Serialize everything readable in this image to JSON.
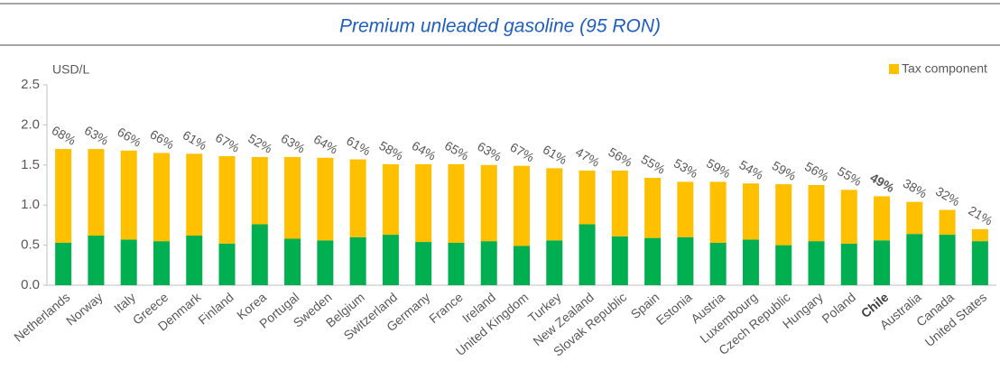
{
  "chart_data": {
    "type": "stacked_bar",
    "title": "Premium unleaded gasoline (95 RON)",
    "y_label": "USD/L",
    "categories": [
      "Netherlands",
      "Norway",
      "Italy",
      "Greece",
      "Denmark",
      "Finland",
      "Korea",
      "Portugal",
      "Sweden",
      "Belgium",
      "Switzerland",
      "Germany",
      "France",
      "Ireland",
      "United Kingdom",
      "Turkey",
      "New Zealand",
      "Slovak Republic",
      "Spain",
      "Estonia",
      "Austria",
      "Luxembourg",
      "Czech Republic",
      "Hungary",
      "Poland",
      "Chile",
      "Australia",
      "Canada",
      "United States"
    ],
    "series": [
      {
        "color": "#00b050",
        "values": [
          0.53,
          0.62,
          0.57,
          0.55,
          0.62,
          0.52,
          0.76,
          0.58,
          0.56,
          0.6,
          0.63,
          0.54,
          0.53,
          0.55,
          0.49,
          0.56,
          0.76,
          0.61,
          0.59,
          0.6,
          0.53,
          0.57,
          0.5,
          0.55,
          0.52,
          0.56,
          0.64,
          0.63,
          0.55
        ]
      },
      {
        "name": "Tax component",
        "color": "#ffc000",
        "values": [
          1.17,
          1.08,
          1.11,
          1.1,
          1.02,
          1.09,
          0.84,
          1.02,
          1.03,
          0.97,
          0.88,
          0.97,
          0.98,
          0.95,
          1.0,
          0.9,
          0.67,
          0.82,
          0.75,
          0.69,
          0.76,
          0.7,
          0.76,
          0.7,
          0.67,
          0.55,
          0.4,
          0.31,
          0.15
        ]
      }
    ],
    "share_labels": [
      "68%",
      "63%",
      "66%",
      "66%",
      "61%",
      "67%",
      "52%",
      "63%",
      "64%",
      "61%",
      "58%",
      "64%",
      "65%",
      "63%",
      "67%",
      "61%",
      "47%",
      "56%",
      "55%",
      "53%",
      "59%",
      "54%",
      "59%",
      "56%",
      "55%",
      "49%",
      "38%",
      "32%",
      "21%"
    ],
    "highlight_index": 25,
    "ylim": [
      0,
      2.5
    ],
    "yticks": [
      {
        "value": 0,
        "label": "0.0"
      },
      0.5,
      {
        "value": 1,
        "label": "1.0"
      },
      1.5,
      {
        "value": 2,
        "label": "2.0"
      },
      2.5
    ],
    "legend": "top-right"
  }
}
